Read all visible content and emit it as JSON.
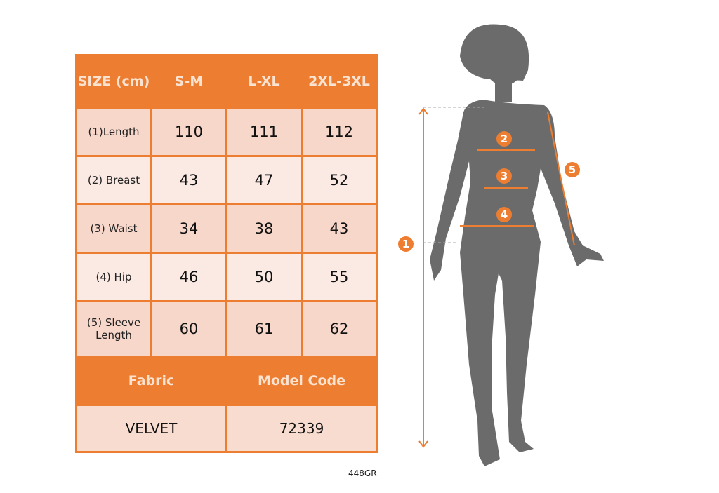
{
  "table": {
    "header": [
      "SIZE (cm)",
      "S-M",
      "L-XL",
      "2XL-3XL"
    ],
    "rows": [
      {
        "label": "(1)Length",
        "values": [
          "110",
          "111",
          "112"
        ]
      },
      {
        "label": "(2) Breast",
        "values": [
          "43",
          "47",
          "52"
        ]
      },
      {
        "label": "(3) Waist",
        "values": [
          "34",
          "38",
          "43"
        ]
      },
      {
        "label": "(4) Hip",
        "values": [
          "46",
          "50",
          "55"
        ]
      },
      {
        "label": "(5) Sleeve Length",
        "values": [
          "60",
          "61",
          "62"
        ]
      }
    ],
    "fabric_label": "Fabric",
    "model_code_label": "Model Code",
    "fabric_value": "VELVET",
    "model_code_value": "72339"
  },
  "product_code": "448GR",
  "diagram": {
    "markers": [
      "1",
      "2",
      "3",
      "4",
      "5"
    ],
    "accent_color": "#ed7d31",
    "silhouette_color": "#6b6b6b"
  }
}
